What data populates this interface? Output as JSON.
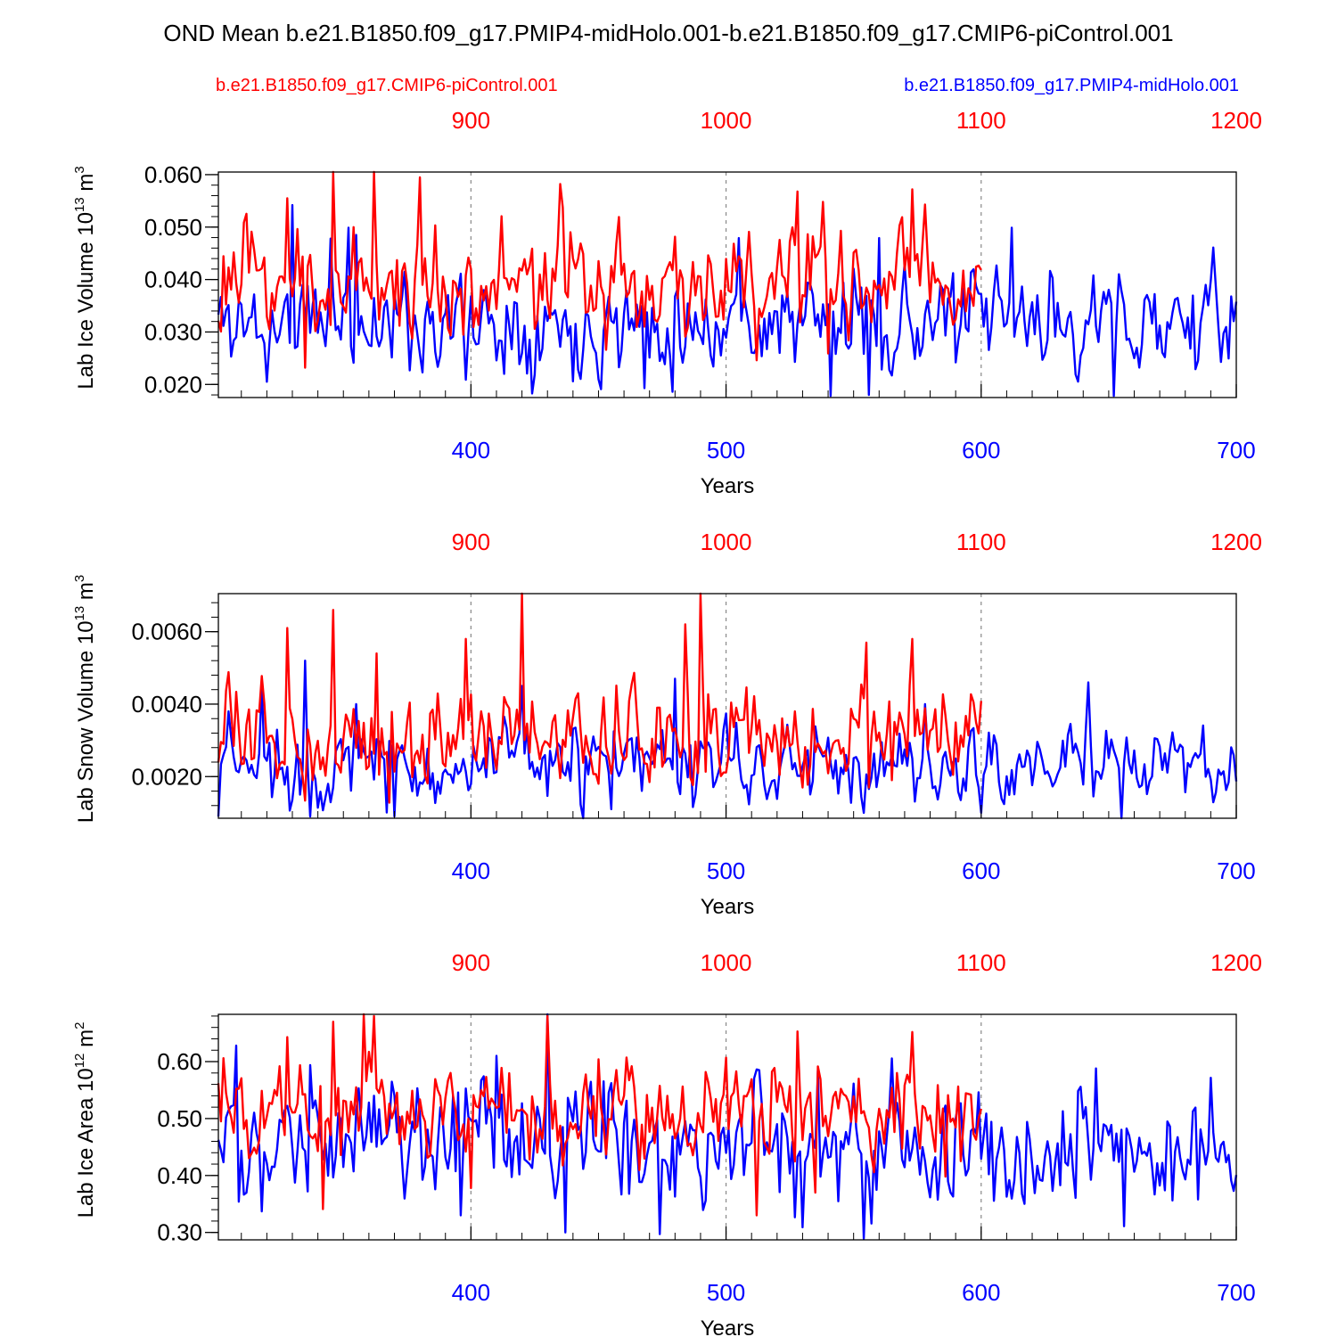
{
  "title": "OND Mean b.e21.B1850.f09_g17.PMIP4-midHolo.001-b.e21.B1850.f09_g17.CMIP6-piControl.001",
  "legend": {
    "control": {
      "label": "b.e21.B1850.f09_g17.CMIP6-piControl.001",
      "color": "#ff0000"
    },
    "test": {
      "label": "b.e21.B1850.f09_g17.PMIP4-midHolo.001",
      "color": "#0000ff"
    }
  },
  "chart_data": [
    {
      "type": "line",
      "ylabel_main": "Lab Ice Volume 10",
      "ylabel_exp": "13",
      "ylabel_unit": " m",
      "ylabel_unit_exp": "3",
      "ylim": [
        0.0175,
        0.0605
      ],
      "yticks": [
        0.02,
        0.03,
        0.04,
        0.05,
        0.06
      ],
      "ytick_labels": [
        "0.020",
        "0.030",
        "0.040",
        "0.050",
        "0.060"
      ],
      "minor_step": 0.002,
      "xlabel": "Years",
      "x_bottom": {
        "range": [
          301,
          700
        ],
        "ticks": [
          400,
          500,
          600,
          700
        ],
        "labels": [
          "400",
          "500",
          "600",
          "700"
        ],
        "minor_step": 10
      },
      "x_top": {
        "range": [
          801,
          1200
        ],
        "ticks": [
          900,
          1000,
          1100,
          1200
        ],
        "labels": [
          "900",
          "1000",
          "1100",
          "1200"
        ]
      },
      "grid_x": [
        400,
        500,
        600
      ],
      "series": [
        {
          "name": "b.e21.B1850.f09_g17.PMIP4-midHolo.001",
          "axis": "bottom",
          "x_start": 301,
          "x_end": 700,
          "center": 0.032,
          "spread": 0.0055,
          "seed": 11,
          "ymin": 0.0175,
          "ymax": 0.0605,
          "peaks": [
            [
              330,
              0.0542
            ],
            [
              345,
              0.0479
            ],
            [
              352,
              0.0499
            ],
            [
              505,
              0.0479
            ],
            [
              355,
              0.0485
            ],
            [
              560,
              0.0479
            ],
            [
              612,
              0.0499
            ],
            [
              345,
              0.0478
            ]
          ],
          "dips": [
            [
              320,
              0.0205
            ],
            [
              398,
              0.0209
            ],
            [
              440,
              0.0206
            ],
            [
              468,
              0.0193
            ],
            [
              541,
              0.0178
            ],
            [
              556,
              0.018
            ],
            [
              652,
              0.0178
            ]
          ]
        },
        {
          "name": "b.e21.B1850.f09_g17.CMIP6-piControl.001",
          "axis": "top",
          "x_start": 801,
          "x_end": 1100,
          "center": 0.0395,
          "spread": 0.0065,
          "seed": 23,
          "ymin": 0.0175,
          "ymax": 0.0605,
          "peaks": [
            [
              828,
              0.0555
            ],
            [
              846,
              0.0605
            ],
            [
              862,
              0.0605
            ],
            [
              880,
              0.0595
            ],
            [
              935,
              0.0582
            ],
            [
              1028,
              0.0568
            ],
            [
              1073,
              0.0572
            ]
          ],
          "dips": [
            [
              835,
              0.0232
            ],
            [
              1012,
              0.0246
            ],
            [
              1040,
              0.0259
            ]
          ]
        }
      ]
    },
    {
      "type": "line",
      "ylabel_main": "Lab Snow Volume 10",
      "ylabel_exp": "13",
      "ylabel_unit": " m",
      "ylabel_unit_exp": "3",
      "ylim": [
        0.00085,
        0.00705
      ],
      "yticks": [
        0.002,
        0.004,
        0.006
      ],
      "ytick_labels": [
        "0.0020",
        "0.0040",
        "0.0060"
      ],
      "minor_step": 0.0004,
      "xlabel": "Years",
      "x_bottom": {
        "range": [
          301,
          700
        ],
        "ticks": [
          400,
          500,
          600,
          700
        ],
        "labels": [
          "400",
          "500",
          "600",
          "700"
        ],
        "minor_step": 10
      },
      "x_top": {
        "range": [
          801,
          1200
        ],
        "ticks": [
          900,
          1000,
          1100,
          1200
        ],
        "labels": [
          "900",
          "1000",
          "1100",
          "1200"
        ]
      },
      "grid_x": [
        400,
        500,
        600
      ],
      "series": [
        {
          "name": "b.e21.B1850.f09_g17.PMIP4-midHolo.001",
          "axis": "bottom",
          "x_start": 301,
          "x_end": 700,
          "center": 0.0023,
          "spread": 0.00065,
          "seed": 37,
          "ymin": 0.00085,
          "ymax": 0.00705,
          "peaks": [
            [
              305,
              0.0038
            ],
            [
              318,
              0.0046
            ],
            [
              335,
              0.0052
            ],
            [
              355,
              0.004
            ],
            [
              420,
              0.0045
            ],
            [
              480,
              0.0047
            ],
            [
              642,
              0.0046
            ],
            [
              578,
              0.004
            ]
          ],
          "dips": [
            [
              301,
              0.0009
            ],
            [
              337,
              0.0009
            ],
            [
              370,
              0.0009
            ],
            [
              455,
              0.0011
            ],
            [
              554,
              0.001
            ],
            [
              600,
              0.001
            ],
            [
              655,
              0.00085
            ]
          ]
        },
        {
          "name": "b.e21.B1850.f09_g17.CMIP6-piControl.001",
          "axis": "top",
          "x_start": 801,
          "x_end": 1100,
          "center": 0.0031,
          "spread": 0.0008,
          "seed": 53,
          "ymin": 0.00085,
          "ymax": 0.00705,
          "peaks": [
            [
              828,
              0.0061
            ],
            [
              846,
              0.0066
            ],
            [
              863,
              0.0054
            ],
            [
              920,
              0.00705
            ],
            [
              984,
              0.0062
            ],
            [
              990,
              0.00705
            ],
            [
              1055,
              0.0057
            ],
            [
              1073,
              0.0058
            ],
            [
              898,
              0.0058
            ]
          ],
          "dips": [
            [
              838,
              0.0019
            ],
            [
              1030,
              0.0017
            ],
            [
              1065,
              0.0019
            ]
          ]
        }
      ]
    },
    {
      "type": "line",
      "ylabel_main": "Lab Ice Area 10",
      "ylabel_exp": "12",
      "ylabel_unit": " m",
      "ylabel_unit_exp": "2",
      "ylim": [
        0.287,
        0.683
      ],
      "yticks": [
        0.3,
        0.4,
        0.5,
        0.6
      ],
      "ytick_labels": [
        "0.30",
        "0.40",
        "0.50",
        "0.60"
      ],
      "minor_step": 0.02,
      "xlabel": "Years",
      "x_bottom": {
        "range": [
          301,
          700
        ],
        "ticks": [
          400,
          500,
          600,
          700
        ],
        "labels": [
          "400",
          "500",
          "600",
          "700"
        ],
        "minor_step": 10
      },
      "x_top": {
        "range": [
          801,
          1200
        ],
        "ticks": [
          900,
          1000,
          1100,
          1200
        ],
        "labels": [
          "900",
          "1000",
          "1100",
          "1200"
        ]
      },
      "grid_x": [
        400,
        500,
        600
      ],
      "series": [
        {
          "name": "b.e21.B1850.f09_g17.PMIP4-midHolo.001",
          "axis": "bottom",
          "x_start": 301,
          "x_end": 700,
          "center": 0.46,
          "spread": 0.06,
          "seed": 71,
          "ymin": 0.287,
          "ymax": 0.683,
          "peaks": [
            [
              308,
              0.628
            ],
            [
              430,
              0.683
            ],
            [
              410,
              0.61
            ],
            [
              645,
              0.588
            ],
            [
              536,
              0.584
            ]
          ],
          "dips": [
            [
              318,
              0.337
            ],
            [
              336,
              0.372
            ],
            [
              396,
              0.33
            ],
            [
              437,
              0.3
            ],
            [
              474,
              0.297
            ],
            [
              530,
              0.309
            ],
            [
              554,
              0.289
            ],
            [
              656,
              0.311
            ]
          ]
        },
        {
          "name": "b.e21.B1850.f09_g17.CMIP6-piControl.001",
          "axis": "top",
          "x_start": 801,
          "x_end": 1100,
          "center": 0.52,
          "spread": 0.055,
          "seed": 89,
          "ymin": 0.287,
          "ymax": 0.683,
          "peaks": [
            [
              828,
              0.643
            ],
            [
              846,
              0.67
            ],
            [
              858,
              0.683
            ],
            [
              862,
              0.68
            ],
            [
              930,
              0.68
            ],
            [
              1028,
              0.653
            ],
            [
              1073,
              0.652
            ]
          ],
          "dips": [
            [
              842,
              0.341
            ],
            [
              900,
              0.378
            ],
            [
              1012,
              0.33
            ],
            [
              1035,
              0.37
            ],
            [
              1086,
              0.398
            ]
          ]
        }
      ]
    }
  ]
}
